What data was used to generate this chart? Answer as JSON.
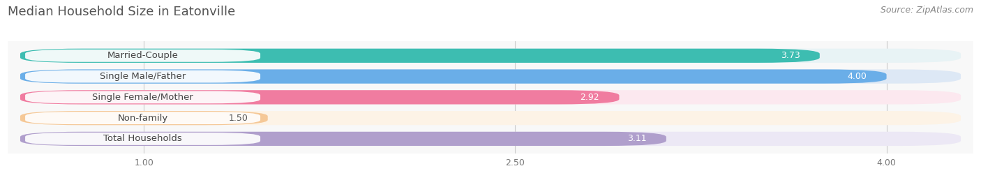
{
  "title": "Median Household Size in Eatonville",
  "source": "Source: ZipAtlas.com",
  "categories": [
    "Married-Couple",
    "Single Male/Father",
    "Single Female/Mother",
    "Non-family",
    "Total Households"
  ],
  "values": [
    3.73,
    4.0,
    2.92,
    1.5,
    3.11
  ],
  "bar_colors": [
    "#3dbdb1",
    "#6aaee8",
    "#f07ca0",
    "#f5c897",
    "#b09fcc"
  ],
  "bar_bg_colors": [
    "#e8f3f5",
    "#dde8f5",
    "#fce8ef",
    "#fdf3e6",
    "#ece8f5"
  ],
  "xlim_data_min": 0.5,
  "xlim_data_max": 4.3,
  "xticks": [
    1.0,
    2.5,
    4.0
  ],
  "xtick_labels": [
    "1.00",
    "2.50",
    "4.00"
  ],
  "title_fontsize": 13,
  "label_fontsize": 9.5,
  "value_fontsize": 9.0,
  "source_fontsize": 9,
  "bar_height": 0.68,
  "bar_gap": 0.32
}
